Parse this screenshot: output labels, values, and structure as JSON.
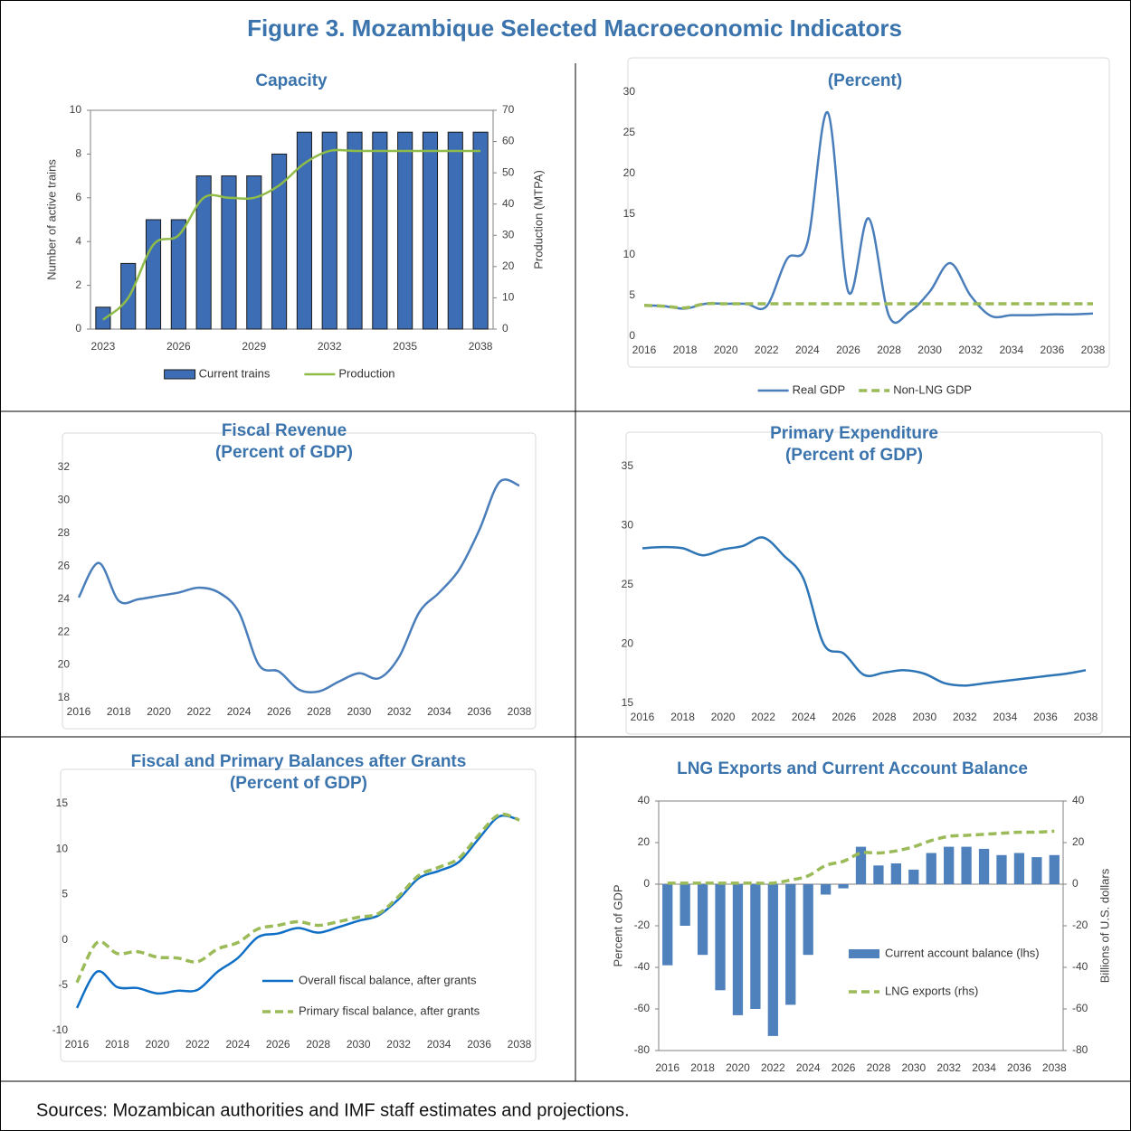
{
  "title": "Figure 3. Mozambique Selected Macroeconomic Indicators",
  "source": "Sources: Mozambican authorities and IMF staff estimates and projections.",
  "chart_data": [
    {
      "type": "combo",
      "title": "Capacity",
      "categories": [
        "2023",
        null,
        null,
        "2026",
        null,
        null,
        "2029",
        null,
        null,
        "2032",
        null,
        null,
        "2035",
        null,
        null,
        "2038"
      ],
      "series": [
        {
          "name": "Current trains",
          "type": "bar",
          "color": "#3d6db5",
          "edgecolor": "#1a1a1a",
          "values": [
            1,
            3,
            5,
            5,
            7,
            7,
            7,
            8,
            9,
            9,
            9,
            9,
            9,
            9,
            9,
            9
          ]
        },
        {
          "name": "Production",
          "type": "line",
          "axis": "y2",
          "color": "#8fbc48",
          "values": [
            3,
            10,
            27,
            30,
            42,
            42,
            42,
            46,
            53,
            57,
            57,
            57,
            57,
            57,
            57,
            57
          ]
        }
      ],
      "ylim": [
        0,
        10
      ],
      "yticks": [
        0,
        2,
        4,
        6,
        8,
        10
      ],
      "y2lim": [
        0,
        70
      ],
      "y2ticks": [
        0,
        10,
        20,
        30,
        40,
        50,
        60,
        70
      ],
      "ylabel": "Number of active trains",
      "y2label": "Production (MTPA)",
      "legend": "bottom"
    },
    {
      "type": "line",
      "title": "(Percent)",
      "x": [
        2016,
        2017,
        2018,
        2019,
        2020,
        2021,
        2022,
        2023,
        2024,
        2025,
        2026,
        2027,
        2028,
        2029,
        2030,
        2031,
        2032,
        2033,
        2034,
        2035,
        2036,
        2037,
        2038
      ],
      "series": [
        {
          "name": "Real GDP",
          "color": "#4a7ebb",
          "values": [
            3.8,
            3.7,
            3.4,
            4.0,
            4.0,
            4.0,
            3.7,
            9.5,
            11.5,
            27.5,
            5.5,
            14.5,
            2.5,
            3.0,
            5.5,
            9.0,
            5.0,
            2.5,
            2.6,
            2.6,
            2.7,
            2.7,
            2.8
          ]
        },
        {
          "name": "Non-LNG GDP",
          "color": "#9bbb59",
          "style": "dashed",
          "values": [
            3.8,
            3.7,
            3.5,
            4.0,
            4.0,
            4.0,
            4.0,
            4.0,
            4.0,
            4.0,
            4.0,
            4.0,
            4.0,
            4.0,
            4.0,
            4.0,
            4.0,
            4.0,
            4.0,
            4.0,
            4.0,
            4.0,
            4.0
          ]
        }
      ],
      "xlim": [
        2016,
        2038
      ],
      "xticks": [
        2016,
        2018,
        2020,
        2022,
        2024,
        2026,
        2028,
        2030,
        2032,
        2034,
        2036,
        2038
      ],
      "ylim": [
        0,
        30
      ],
      "yticks": [
        0,
        5,
        10,
        15,
        20,
        25,
        30
      ],
      "legend": "bottom"
    },
    {
      "type": "line",
      "title": "Fiscal Revenue",
      "subtitle": "(Percent of GDP)",
      "x": [
        2016,
        2017,
        2018,
        2019,
        2020,
        2021,
        2022,
        2023,
        2024,
        2025,
        2026,
        2027,
        2028,
        2029,
        2030,
        2031,
        2032,
        2033,
        2034,
        2035,
        2036,
        2037,
        2038
      ],
      "values": [
        24.1,
        26.2,
        23.9,
        24.0,
        24.2,
        24.4,
        24.7,
        24.4,
        23.2,
        20.0,
        19.6,
        18.5,
        18.4,
        19.0,
        19.5,
        19.2,
        20.5,
        23.2,
        24.4,
        25.8,
        28.2,
        31.1,
        30.9
      ],
      "color": "#4a7ebb",
      "xlim": [
        2016,
        2038
      ],
      "xticks": [
        2016,
        2018,
        2020,
        2022,
        2024,
        2026,
        2028,
        2030,
        2032,
        2034,
        2036,
        2038
      ],
      "ylim": [
        18,
        32
      ],
      "yticks": [
        18,
        20,
        22,
        24,
        26,
        28,
        30,
        32
      ]
    },
    {
      "type": "line",
      "title": "Primary Expenditure",
      "subtitle": "(Percent of GDP)",
      "x": [
        2016,
        2017,
        2018,
        2019,
        2020,
        2021,
        2022,
        2023,
        2024,
        2025,
        2026,
        2027,
        2028,
        2029,
        2030,
        2031,
        2032,
        2033,
        2034,
        2035,
        2036,
        2037,
        2038
      ],
      "values": [
        28.1,
        28.2,
        28.1,
        27.5,
        28.0,
        28.3,
        29.0,
        27.5,
        25.5,
        20.0,
        19.2,
        17.4,
        17.6,
        17.8,
        17.5,
        16.7,
        16.5,
        16.7,
        16.9,
        17.1,
        17.3,
        17.5,
        17.8
      ],
      "color": "#2e75b6",
      "xlim": [
        2016,
        2038
      ],
      "xticks": [
        2016,
        2018,
        2020,
        2022,
        2024,
        2026,
        2028,
        2030,
        2032,
        2034,
        2036,
        2038
      ],
      "ylim": [
        15,
        35
      ],
      "yticks": [
        15,
        20,
        25,
        30,
        35
      ]
    },
    {
      "type": "line",
      "title": "Fiscal and Primary Balances after Grants",
      "subtitle": "(Percent of GDP)",
      "x": [
        2016,
        2017,
        2018,
        2019,
        2020,
        2021,
        2022,
        2023,
        2024,
        2025,
        2026,
        2027,
        2028,
        2029,
        2030,
        2031,
        2032,
        2033,
        2034,
        2035,
        2036,
        2037,
        2038
      ],
      "series": [
        {
          "name": "Overall fiscal balance, after grants",
          "color": "#0f6fc6",
          "values": [
            -7.5,
            -3.5,
            -5.2,
            -5.3,
            -5.9,
            -5.6,
            -5.5,
            -3.5,
            -2.0,
            0.3,
            0.7,
            1.3,
            0.8,
            1.4,
            2.1,
            2.7,
            4.5,
            6.8,
            7.6,
            8.6,
            11.2,
            13.6,
            13.2
          ]
        },
        {
          "name": "Primary fiscal balance, after grants",
          "color": "#9bbb59",
          "style": "dashed",
          "values": [
            -4.7,
            -0.3,
            -1.5,
            -1.3,
            -1.9,
            -2.0,
            -2.4,
            -1.0,
            -0.3,
            1.2,
            1.6,
            2.0,
            1.6,
            2.0,
            2.5,
            2.9,
            4.8,
            7.1,
            8.0,
            9.0,
            11.6,
            13.8,
            13.2
          ]
        }
      ],
      "xlim": [
        2016,
        2038
      ],
      "xticks": [
        2016,
        2018,
        2020,
        2022,
        2024,
        2026,
        2028,
        2030,
        2032,
        2034,
        2036,
        2038
      ],
      "ylim": [
        -10,
        15
      ],
      "yticks": [
        -10,
        -5,
        0,
        5,
        10,
        15
      ],
      "legend": "lower right"
    },
    {
      "type": "combo",
      "title": "LNG Exports and Current Account Balance",
      "categories": [
        "2016",
        null,
        "2018",
        null,
        "2020",
        null,
        "2022",
        null,
        "2024",
        null,
        "2026",
        null,
        "2028",
        null,
        "2030",
        null,
        "2032",
        null,
        "2034",
        null,
        "2036",
        null,
        "2038"
      ],
      "series": [
        {
          "name": "Current account balance (lhs)",
          "type": "bar",
          "color": "#4f81bd",
          "values": [
            -39,
            -20,
            -34,
            -51,
            -63,
            -60,
            -73,
            -58,
            -34,
            -5,
            -2,
            18,
            9,
            10,
            7,
            15,
            18,
            18,
            17,
            14,
            15,
            13,
            14
          ]
        },
        {
          "name": "LNG exports (rhs)",
          "type": "line",
          "axis": "y2",
          "style": "dashed",
          "color": "#9bbb59",
          "values": [
            0.5,
            0.5,
            0.5,
            0.5,
            0.5,
            0.5,
            0.5,
            2,
            4,
            9,
            11,
            15,
            15,
            16,
            18,
            21,
            23,
            23.5,
            24,
            24.5,
            25,
            25,
            25.5
          ]
        }
      ],
      "ylim": [
        -80,
        40
      ],
      "yticks": [
        -80,
        -60,
        -40,
        -20,
        0,
        20,
        40
      ],
      "y2lim": [
        -80,
        40
      ],
      "y2ticks": [
        -80,
        -60,
        -40,
        -20,
        0,
        20,
        40
      ],
      "ylabel": "Percent of GDP",
      "y2label": "Billions  of  U.S. dollars",
      "legend": "right"
    }
  ]
}
